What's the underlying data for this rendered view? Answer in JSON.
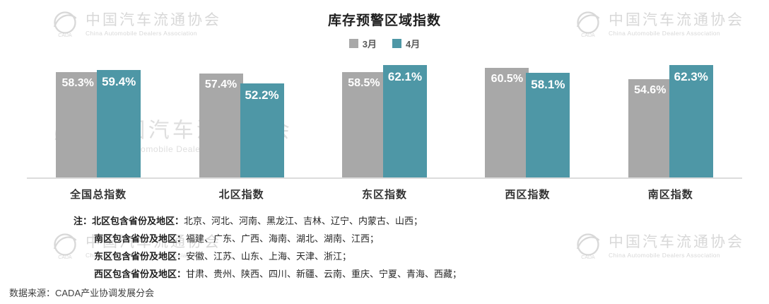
{
  "chart_data": {
    "type": "bar",
    "title": "库存预警区域指数",
    "categories": [
      "全国总指数",
      "北区指数",
      "东区指数",
      "西区指数",
      "南区指数"
    ],
    "series": [
      {
        "name": "3月",
        "color": "#a8a8a8",
        "values": [
          58.3,
          57.4,
          58.5,
          60.5,
          54.6
        ]
      },
      {
        "name": "4月",
        "color": "#4e97a6",
        "values": [
          59.4,
          52.2,
          62.1,
          58.1,
          62.3
        ]
      }
    ],
    "value_suffix": "%",
    "ylim": [
      0,
      65
    ],
    "grid": false,
    "legend_position": "top"
  },
  "watermark": {
    "cn": "中国汽车流通协会",
    "en": "China Automobile Dealers Association"
  },
  "notes": {
    "prefix": "注：",
    "lines": [
      {
        "label": "北区包含省份及地区：",
        "text": "北京、河北、河南、黑龙江、吉林、辽宁、内蒙古、山西；"
      },
      {
        "label": "南区包含省份及地区：",
        "text": "福建、广东、广西、海南、湖北、湖南、江西；"
      },
      {
        "label": "东区包含省份及地区：",
        "text": "安徽、江苏、山东、上海、天津、浙江；"
      },
      {
        "label": "西区包含省份及地区：",
        "text": "甘肃、贵州、陕西、四川、新疆、云南、重庆、宁夏、青海、西藏；"
      }
    ]
  },
  "source": "数据来源：CADA产业协调发展分会"
}
